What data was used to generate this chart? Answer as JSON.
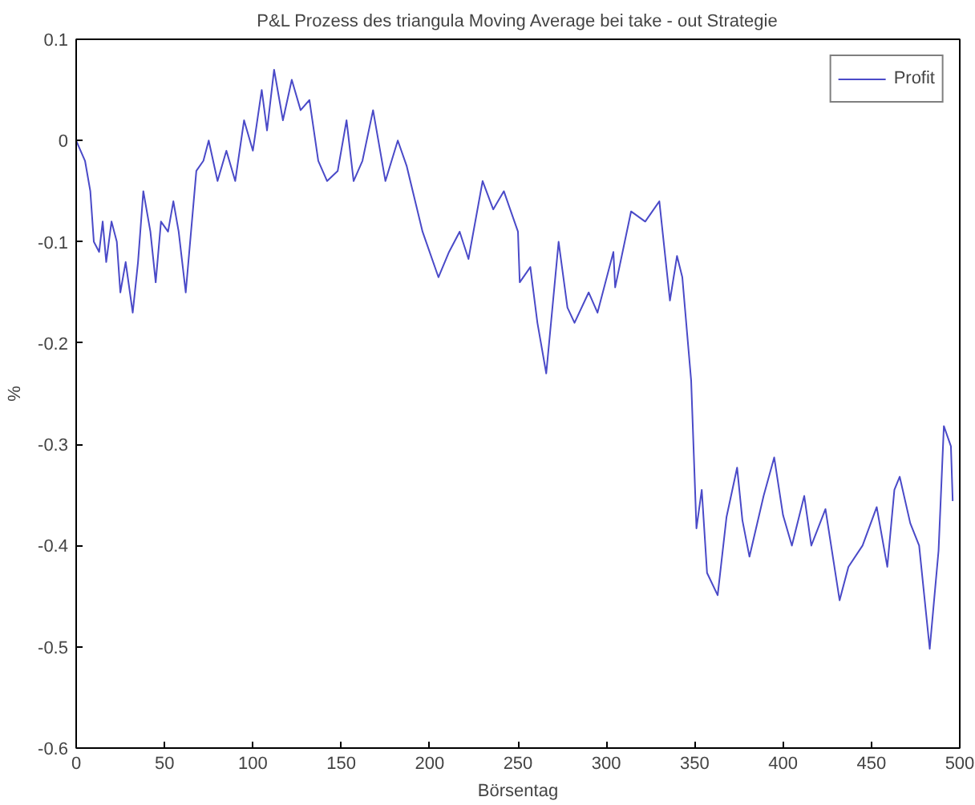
{
  "chart_data": {
    "type": "line",
    "title": "P&L Prozess des triangula Moving Average bei take - out Strategie",
    "xlabel": "Börsentag",
    "ylabel": "%",
    "xlim": [
      0,
      500
    ],
    "xticks": [
      0,
      50,
      100,
      150,
      200,
      250,
      300,
      350,
      400,
      450,
      500
    ],
    "ylim": [
      -0.6,
      0.1
    ],
    "yticks": [
      {
        "value": -0.6,
        "label": "-0.6"
      },
      {
        "value": -0.5,
        "label": "-0.5"
      },
      {
        "value": -0.4,
        "label": "-0.4"
      },
      {
        "value": -0.3,
        "label": "-0.3"
      },
      {
        "value": -0.2,
        "label": "-0.2"
      },
      {
        "value": -0.1,
        "label": "-0.1"
      },
      {
        "value": 0,
        "label": "0"
      },
      {
        "value": 0.1,
        "label": "0.1"
      }
    ],
    "grid": false,
    "legend": "top right",
    "marker": "none",
    "line_style": "solid",
    "series": [
      {
        "name": "Profit",
        "color": "#4a4ac8",
        "x": [
          0,
          5,
          8,
          10,
          13,
          15,
          17,
          20,
          23,
          25,
          28,
          32,
          35,
          38,
          42,
          45,
          48,
          52,
          55,
          58,
          62,
          65,
          68,
          72,
          75,
          80,
          85,
          90,
          95,
          100,
          105,
          108,
          112,
          117,
          122,
          127,
          132,
          137,
          142,
          148,
          153,
          157,
          162,
          168,
          175,
          182,
          187,
          196,
          205,
          211,
          217,
          222,
          230,
          236,
          242,
          250,
          251,
          257,
          261,
          266,
          273,
          278,
          282,
          290,
          295,
          304,
          305,
          314,
          322,
          330,
          336,
          340,
          343,
          348,
          351,
          354,
          357,
          363,
          368,
          374,
          377,
          381,
          389,
          395,
          400,
          405,
          412,
          416,
          424,
          432,
          437,
          445,
          453,
          459,
          463,
          466,
          472,
          477,
          483,
          488,
          491,
          495,
          496
        ],
        "values": [
          0,
          -0.02,
          -0.05,
          -0.1,
          -0.11,
          -0.08,
          -0.12,
          -0.08,
          -0.1,
          -0.15,
          -0.12,
          -0.17,
          -0.12,
          -0.05,
          -0.09,
          -0.14,
          -0.08,
          -0.09,
          -0.06,
          -0.09,
          -0.15,
          -0.09,
          -0.03,
          -0.02,
          0.0,
          -0.04,
          -0.01,
          -0.04,
          0.02,
          -0.01,
          0.05,
          0.01,
          0.07,
          0.02,
          0.06,
          0.03,
          0.04,
          -0.02,
          -0.04,
          -0.03,
          0.02,
          -0.04,
          -0.02,
          0.03,
          -0.04,
          0.0,
          -0.025,
          -0.09,
          -0.135,
          -0.11,
          -0.09,
          -0.117,
          -0.04,
          -0.068,
          -0.05,
          -0.09,
          -0.14,
          -0.125,
          -0.18,
          -0.23,
          -0.1,
          -0.165,
          -0.18,
          -0.15,
          -0.17,
          -0.11,
          -0.145,
          -0.07,
          -0.08,
          -0.06,
          -0.158,
          -0.114,
          -0.135,
          -0.237,
          -0.383,
          -0.345,
          -0.427,
          -0.449,
          -0.372,
          -0.323,
          -0.375,
          -0.411,
          -0.351,
          -0.313,
          -0.37,
          -0.4,
          -0.351,
          -0.4,
          -0.364,
          -0.454,
          -0.421,
          -0.4,
          -0.362,
          -0.421,
          -0.345,
          -0.332,
          -0.378,
          -0.4,
          -0.502,
          -0.405,
          -0.282,
          -0.302,
          -0.356
        ]
      }
    ]
  }
}
